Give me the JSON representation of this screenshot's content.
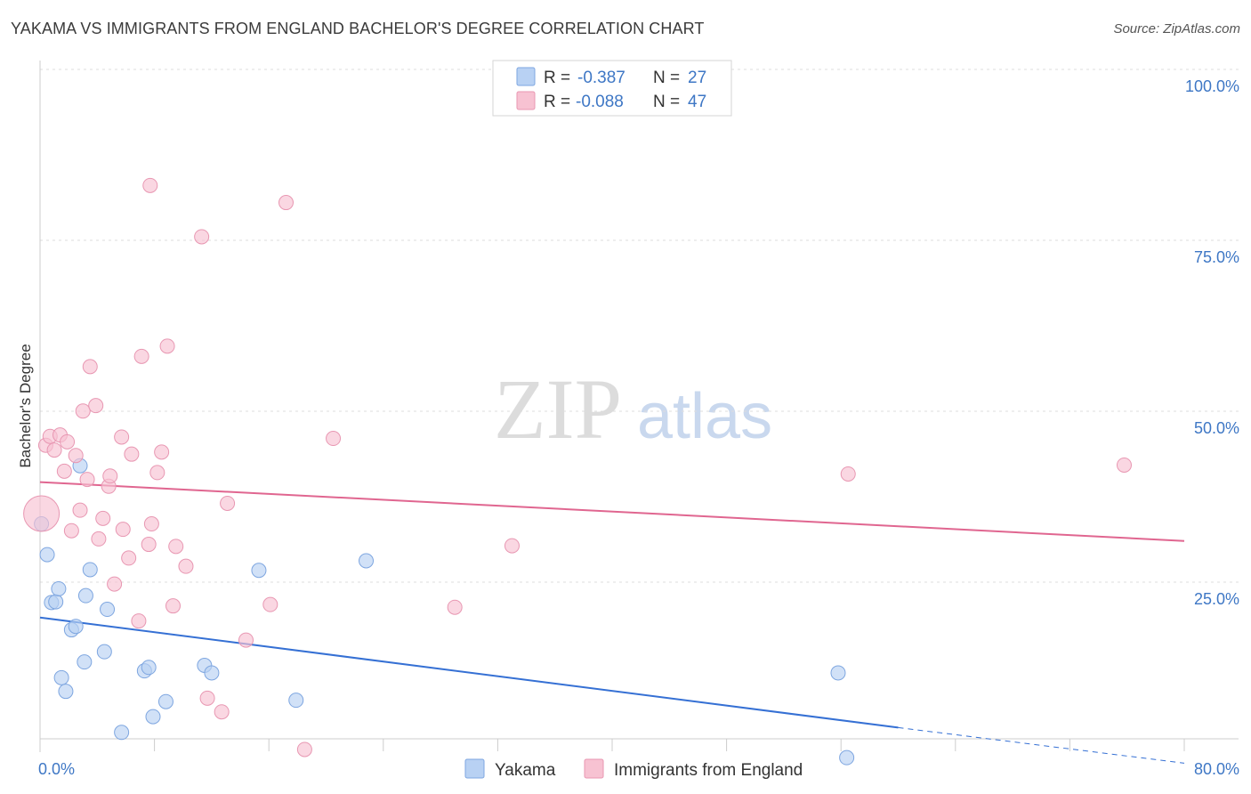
{
  "title": "YAKAMA VS IMMIGRANTS FROM ENGLAND BACHELOR'S DEGREE CORRELATION CHART",
  "source": "Source: ZipAtlas.com",
  "watermark": {
    "zip": "ZIP",
    "atlas": "atlas"
  },
  "colors": {
    "blue": "#3570d4",
    "blue_fill": "#b8d1f3",
    "blue_stroke": "#7ea6e0",
    "pink": "#e06690",
    "pink_fill": "#f7c2d2",
    "pink_stroke": "#e897b2",
    "axis_label": "#3e77c5",
    "grid": "#dddddd"
  },
  "legend": {
    "rows": [
      {
        "r_label": "R = ",
        "r_value": "-0.387",
        "n_label": "N = ",
        "n_value": "27",
        "series": "blue"
      },
      {
        "r_label": "R = ",
        "r_value": "-0.088",
        "n_label": "N = ",
        "n_value": "47",
        "series": "pink"
      }
    ]
  },
  "bottom_legend": [
    {
      "label": "Yakama",
      "series": "blue"
    },
    {
      "label": "Immigrants from England",
      "series": "pink"
    }
  ],
  "chart_data": {
    "type": "scatter",
    "title": "YAKAMA VS IMMIGRANTS FROM ENGLAND BACHELOR'S DEGREE CORRELATION CHART",
    "xlabel": "",
    "ylabel": "Bachelor's Degree",
    "xlim": [
      0,
      80
    ],
    "ylim": [
      0,
      100
    ],
    "x_tick_labels": [
      "0.0%",
      "80.0%"
    ],
    "y_tick_labels": [
      {
        "value": 100,
        "label": "100.0%"
      },
      {
        "value": 75,
        "label": "75.0%"
      },
      {
        "value": 50,
        "label": "50.0%"
      },
      {
        "value": 25,
        "label": "25.0%"
      }
    ],
    "series": [
      {
        "name": "Yakama",
        "color": "blue",
        "points": [
          [
            0.1,
            36.0
          ],
          [
            0.5,
            31.5
          ],
          [
            0.8,
            24.5
          ],
          [
            1.1,
            24.6
          ],
          [
            1.3,
            26.5
          ],
          [
            1.5,
            13.5
          ],
          [
            1.8,
            11.5
          ],
          [
            2.2,
            20.5
          ],
          [
            2.5,
            21.0
          ],
          [
            2.8,
            44.5
          ],
          [
            3.1,
            15.8
          ],
          [
            3.2,
            25.5
          ],
          [
            3.5,
            29.3
          ],
          [
            4.5,
            17.3
          ],
          [
            4.7,
            23.5
          ],
          [
            5.7,
            5.5
          ],
          [
            7.3,
            14.5
          ],
          [
            7.6,
            15.0
          ],
          [
            7.9,
            7.8
          ],
          [
            8.8,
            10.0
          ],
          [
            11.5,
            15.3
          ],
          [
            12.0,
            14.2
          ],
          [
            15.3,
            29.2
          ],
          [
            17.9,
            10.2
          ],
          [
            22.8,
            30.6
          ],
          [
            55.8,
            14.2
          ],
          [
            56.4,
            1.8
          ]
        ],
        "trend": {
          "x0": 0,
          "y0": 22.3,
          "x1": 60,
          "y1": 6.2,
          "dash_to_x": 80,
          "dash_to_y": 1.0
        }
      },
      {
        "name": "Immigrants from England",
        "color": "pink",
        "points": [
          [
            0.1,
            37.5
          ],
          [
            0.4,
            47.5
          ],
          [
            0.7,
            48.8
          ],
          [
            1.0,
            46.8
          ],
          [
            1.4,
            49.0
          ],
          [
            1.7,
            43.7
          ],
          [
            1.9,
            48.0
          ],
          [
            2.2,
            35.0
          ],
          [
            2.5,
            46.0
          ],
          [
            2.8,
            38.0
          ],
          [
            3.0,
            52.5
          ],
          [
            3.3,
            42.5
          ],
          [
            3.5,
            59.0
          ],
          [
            3.9,
            53.3
          ],
          [
            4.1,
            33.8
          ],
          [
            4.4,
            36.8
          ],
          [
            4.8,
            41.5
          ],
          [
            4.9,
            43.0
          ],
          [
            5.2,
            27.2
          ],
          [
            5.7,
            48.7
          ],
          [
            5.8,
            35.2
          ],
          [
            6.2,
            31.0
          ],
          [
            6.4,
            46.2
          ],
          [
            6.9,
            21.8
          ],
          [
            7.1,
            60.5
          ],
          [
            7.6,
            33.0
          ],
          [
            7.7,
            85.5
          ],
          [
            7.8,
            36.0
          ],
          [
            8.2,
            43.5
          ],
          [
            8.5,
            46.5
          ],
          [
            8.9,
            62.0
          ],
          [
            9.3,
            24.0
          ],
          [
            9.5,
            32.7
          ],
          [
            10.2,
            29.8
          ],
          [
            11.3,
            78.0
          ],
          [
            11.7,
            10.5
          ],
          [
            12.7,
            8.5
          ],
          [
            13.1,
            39.0
          ],
          [
            14.4,
            19.0
          ],
          [
            16.1,
            24.2
          ],
          [
            17.2,
            83.0
          ],
          [
            18.5,
            3.0
          ],
          [
            20.5,
            48.5
          ],
          [
            29.0,
            23.8
          ],
          [
            33.0,
            32.8
          ],
          [
            56.5,
            43.3
          ],
          [
            75.8,
            44.6
          ]
        ],
        "trend": {
          "x0": 0,
          "y0": 42.1,
          "x1": 80,
          "y1": 33.5
        }
      }
    ]
  }
}
